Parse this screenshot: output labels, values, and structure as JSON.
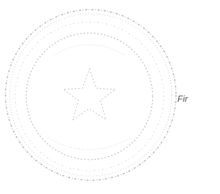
{
  "signature_text": "Fir"
}
